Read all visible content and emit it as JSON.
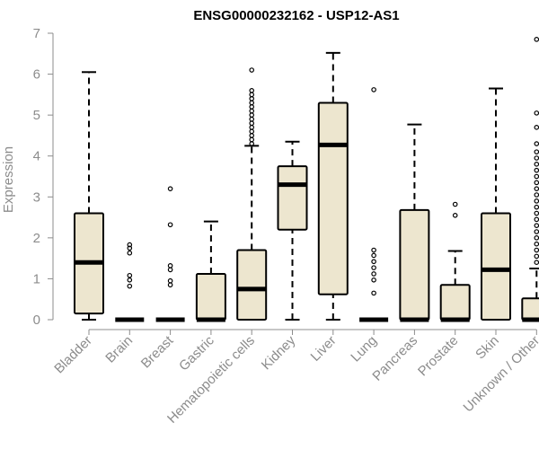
{
  "chart_data": {
    "type": "boxplot",
    "title": "ENSG00000232162 - USP12-AS1",
    "xlabel": "",
    "ylabel": "Expression",
    "ylim": [
      0,
      7
    ],
    "yticks": [
      "0",
      "1",
      "2",
      "3",
      "4",
      "5",
      "6",
      "7"
    ],
    "grid": false,
    "box_color": "#ede6cf",
    "categories": [
      "Bladder",
      "Brain",
      "Breast",
      "Gastric",
      "Hematopoietic cells",
      "Kidney",
      "Liver",
      "Lung",
      "Pancreas",
      "Prostate",
      "Skin",
      "Unknown / Other"
    ],
    "boxes": [
      {
        "min": 0.0,
        "q1": 0.15,
        "median": 1.4,
        "q3": 2.6,
        "max": 6.05,
        "outliers": []
      },
      {
        "min": 0.0,
        "q1": 0.0,
        "median": 0.0,
        "q3": 0.0,
        "max": 0.0,
        "outliers": [
          0.82,
          0.97,
          1.08,
          1.63,
          1.75,
          1.83
        ]
      },
      {
        "min": 0.0,
        "q1": 0.0,
        "median": 0.0,
        "q3": 0.0,
        "max": 0.0,
        "outliers": [
          0.85,
          0.95,
          1.22,
          1.32,
          2.32,
          3.2
        ]
      },
      {
        "min": 0.0,
        "q1": 0.0,
        "median": 0.0,
        "q3": 1.12,
        "max": 2.4,
        "outliers": []
      },
      {
        "min": 0.0,
        "q1": 0.0,
        "median": 0.75,
        "q3": 1.7,
        "max": 4.25,
        "outliers": [
          4.3,
          4.4,
          4.5,
          4.6,
          4.7,
          4.8,
          4.9,
          5.0,
          5.1,
          5.2,
          5.3,
          5.4,
          5.5,
          5.6,
          6.1
        ]
      },
      {
        "min": 0.0,
        "q1": 2.2,
        "median": 3.3,
        "q3": 3.75,
        "max": 4.35,
        "outliers": []
      },
      {
        "min": 0.0,
        "q1": 0.62,
        "median": 4.27,
        "q3": 5.3,
        "max": 6.52,
        "outliers": []
      },
      {
        "min": 0.0,
        "q1": 0.0,
        "median": 0.0,
        "q3": 0.0,
        "max": 0.0,
        "outliers": [
          0.65,
          0.97,
          1.12,
          1.27,
          1.42,
          1.57,
          1.7,
          5.62
        ]
      },
      {
        "min": 0.0,
        "q1": 0.0,
        "median": 0.0,
        "q3": 2.68,
        "max": 4.77,
        "outliers": []
      },
      {
        "min": 0.0,
        "q1": 0.0,
        "median": 0.0,
        "q3": 0.85,
        "max": 1.68,
        "outliers": [
          2.55,
          2.82
        ]
      },
      {
        "min": 0.0,
        "q1": 0.0,
        "median": 1.22,
        "q3": 2.6,
        "max": 5.65,
        "outliers": []
      },
      {
        "min": 0.0,
        "q1": 0.0,
        "median": 0.0,
        "q3": 0.52,
        "max": 1.25,
        "outliers": [
          1.4,
          1.55,
          1.7,
          1.85,
          2.0,
          2.15,
          2.3,
          2.45,
          2.6,
          2.75,
          2.9,
          3.05,
          3.2,
          3.35,
          3.5,
          3.65,
          3.8,
          3.95,
          4.1,
          4.3,
          4.7,
          5.05,
          6.85
        ]
      }
    ]
  }
}
